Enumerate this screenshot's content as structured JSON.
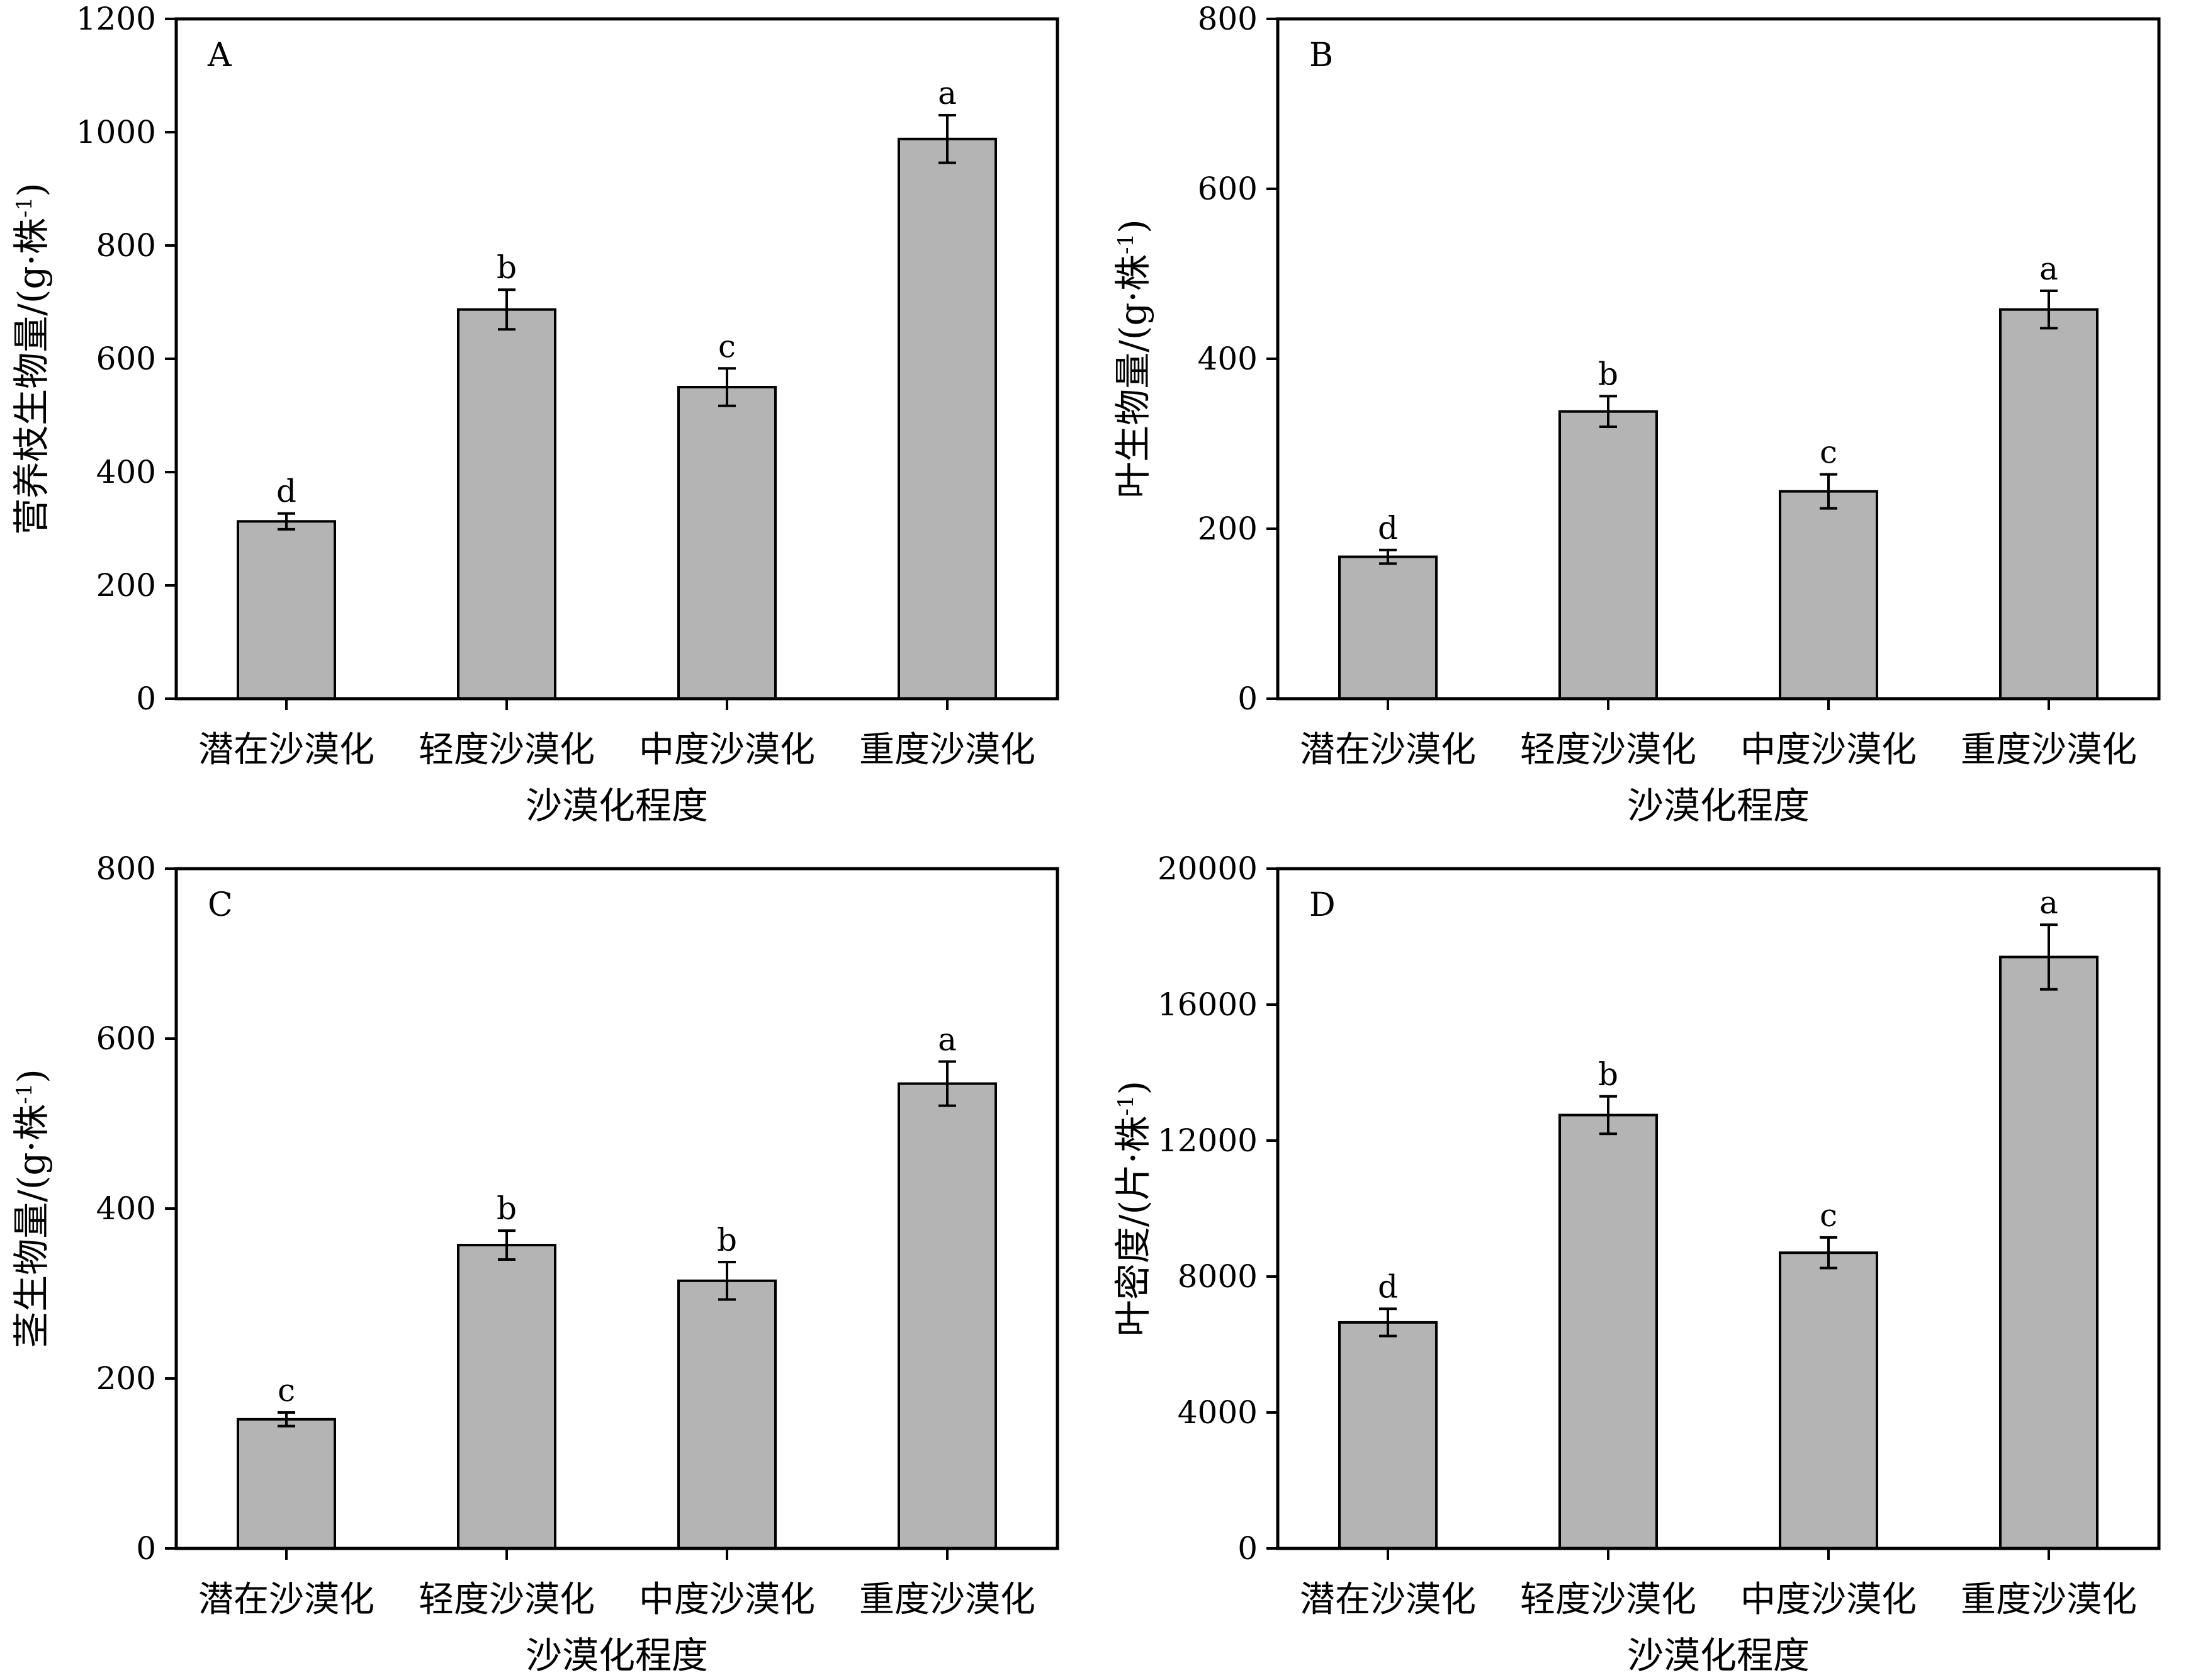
{
  "chart_data": [
    {
      "type": "bar",
      "panel": "A",
      "categories": [
        "潜在沙漠化",
        "轻度沙漠化",
        "中度沙漠化",
        "重度沙漠化"
      ],
      "values": [
        313,
        687,
        550,
        988
      ],
      "errors": [
        14,
        35,
        33,
        42
      ],
      "significance": [
        "d",
        "b",
        "c",
        "a"
      ],
      "xlabel": "沙漠化程度",
      "ylabel": "营养枝生物量/(g·株",
      "ylabel_sup": "-1",
      "ylabel_close": ")",
      "ylim": [
        0,
        1200
      ],
      "yticks": [
        0,
        200,
        400,
        600,
        800,
        1000,
        1200
      ],
      "grid": false,
      "bar_color": "#b4b4b4"
    },
    {
      "type": "bar",
      "panel": "B",
      "categories": [
        "潜在沙漠化",
        "轻度沙漠化",
        "中度沙漠化",
        "重度沙漠化"
      ],
      "values": [
        167,
        338,
        244,
        458
      ],
      "errors": [
        8,
        18,
        20,
        22
      ],
      "significance": [
        "d",
        "b",
        "c",
        "a"
      ],
      "xlabel": "沙漠化程度",
      "ylabel": "叶生物量/(g·株",
      "ylabel_sup": "-1",
      "ylabel_close": ")",
      "ylim": [
        0,
        800
      ],
      "yticks": [
        0,
        200,
        400,
        600,
        800
      ],
      "grid": false,
      "bar_color": "#b4b4b4"
    },
    {
      "type": "bar",
      "panel": "C",
      "categories": [
        "潜在沙漠化",
        "轻度沙漠化",
        "中度沙漠化",
        "重度沙漠化"
      ],
      "values": [
        152,
        357,
        315,
        547
      ],
      "errors": [
        8,
        17,
        22,
        26
      ],
      "significance": [
        "c",
        "b",
        "b",
        "a"
      ],
      "xlabel": "沙漠化程度",
      "ylabel": "茎生物量/(g·株",
      "ylabel_sup": "-1",
      "ylabel_close": ")",
      "ylim": [
        0,
        800
      ],
      "yticks": [
        0,
        200,
        400,
        600,
        800
      ],
      "grid": false,
      "bar_color": "#b4b4b4"
    },
    {
      "type": "bar",
      "panel": "D",
      "categories": [
        "潜在沙漠化",
        "轻度沙漠化",
        "中度沙漠化",
        "重度沙漠化"
      ],
      "values": [
        6650,
        12750,
        8700,
        17400
      ],
      "errors": [
        400,
        550,
        450,
        950
      ],
      "significance": [
        "d",
        "b",
        "c",
        "a"
      ],
      "xlabel": "沙漠化程度",
      "ylabel": "叶密度/(片·株",
      "ylabel_sup": "-1",
      "ylabel_close": ")",
      "ylim": [
        0,
        20000
      ],
      "yticks": [
        0,
        4000,
        8000,
        12000,
        16000,
        20000
      ],
      "grid": false,
      "bar_color": "#b4b4b4"
    }
  ]
}
